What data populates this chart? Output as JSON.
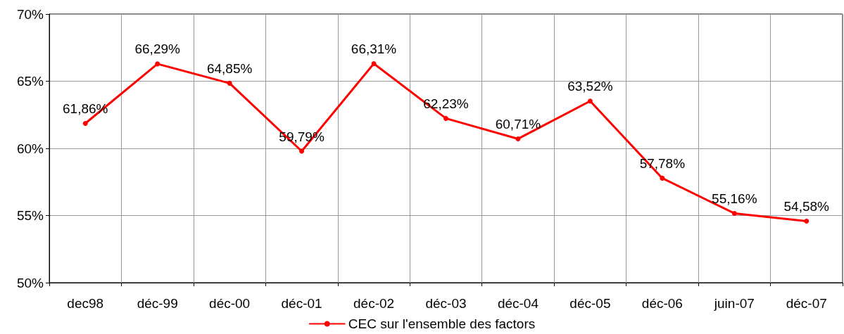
{
  "chart_data": {
    "type": "line",
    "categories": [
      "dec98",
      "déc-99",
      "déc-00",
      "déc-01",
      "déc-02",
      "déc-03",
      "déc-04",
      "déc-05",
      "déc-06",
      "juin-07",
      "déc-07"
    ],
    "series": [
      {
        "name": "CEC sur l'ensemble des factors",
        "color": "#ff0000",
        "values": [
          61.86,
          66.29,
          64.85,
          59.79,
          66.31,
          62.23,
          60.71,
          63.52,
          57.78,
          55.16,
          54.58
        ],
        "value_labels": [
          "61,86%",
          "66,29%",
          "64,85%",
          "59,79%",
          "66,31%",
          "62,23%",
          "60,71%",
          "63,52%",
          "57,78%",
          "55,16%",
          "54,58%"
        ]
      }
    ],
    "ylim": [
      50,
      70
    ],
    "yticks": [
      {
        "value": 50,
        "label": "50%"
      },
      {
        "value": 55,
        "label": "55%"
      },
      {
        "value": 60,
        "label": "60%"
      },
      {
        "value": 65,
        "label": "65%"
      },
      {
        "value": 70,
        "label": "70%"
      }
    ],
    "grid": true,
    "legend": "bottom",
    "marker": "circle",
    "line_style": "solid"
  }
}
